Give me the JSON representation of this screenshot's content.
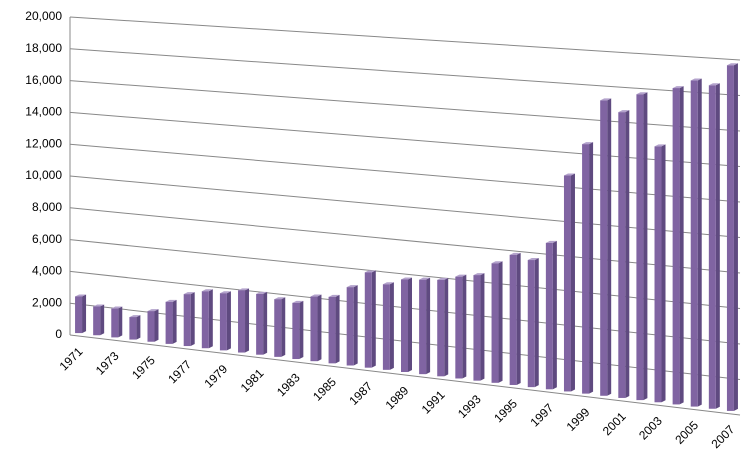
{
  "chart_data": {
    "type": "bar3d",
    "categories": [
      "1971",
      null,
      "1973",
      null,
      "1975",
      null,
      "1977",
      null,
      "1979",
      null,
      "1981",
      null,
      "1983",
      null,
      "1985",
      null,
      "1987",
      null,
      "1989",
      null,
      "1991",
      null,
      "1993",
      null,
      "1995",
      null,
      "1997",
      null,
      "1999",
      null,
      "2001",
      null,
      "2003",
      null,
      "2005",
      null,
      "2007"
    ],
    "values": [
      2300,
      1800,
      1800,
      1400,
      1900,
      2600,
      3200,
      3500,
      3500,
      3800,
      3700,
      3500,
      3400,
      3900,
      4000,
      4700,
      5700,
      5100,
      5500,
      5600,
      5700,
      6000,
      6200,
      7000,
      7600,
      7400,
      8500,
      12500,
      14400,
      17000,
      16400,
      17500,
      14600,
      18000,
      18500,
      18300,
      19500
    ],
    "color": "#8064a2",
    "ylim": [
      0,
      20000
    ],
    "yticks": [
      0,
      {
        "value": 2000,
        "label": "2,000"
      },
      {
        "value": 4000,
        "label": "4,000"
      },
      {
        "value": 6000,
        "label": "6,000"
      },
      {
        "value": 8000,
        "label": "8,000"
      },
      {
        "value": 10000,
        "label": "10,000"
      },
      {
        "value": 12000,
        "label": "12,000"
      },
      {
        "value": 14000,
        "label": "14,000"
      },
      {
        "value": 16000,
        "label": "16,000"
      },
      {
        "value": 18000,
        "label": "18,000"
      },
      {
        "value": 20000,
        "label": "20,000"
      }
    ],
    "grid": true
  }
}
